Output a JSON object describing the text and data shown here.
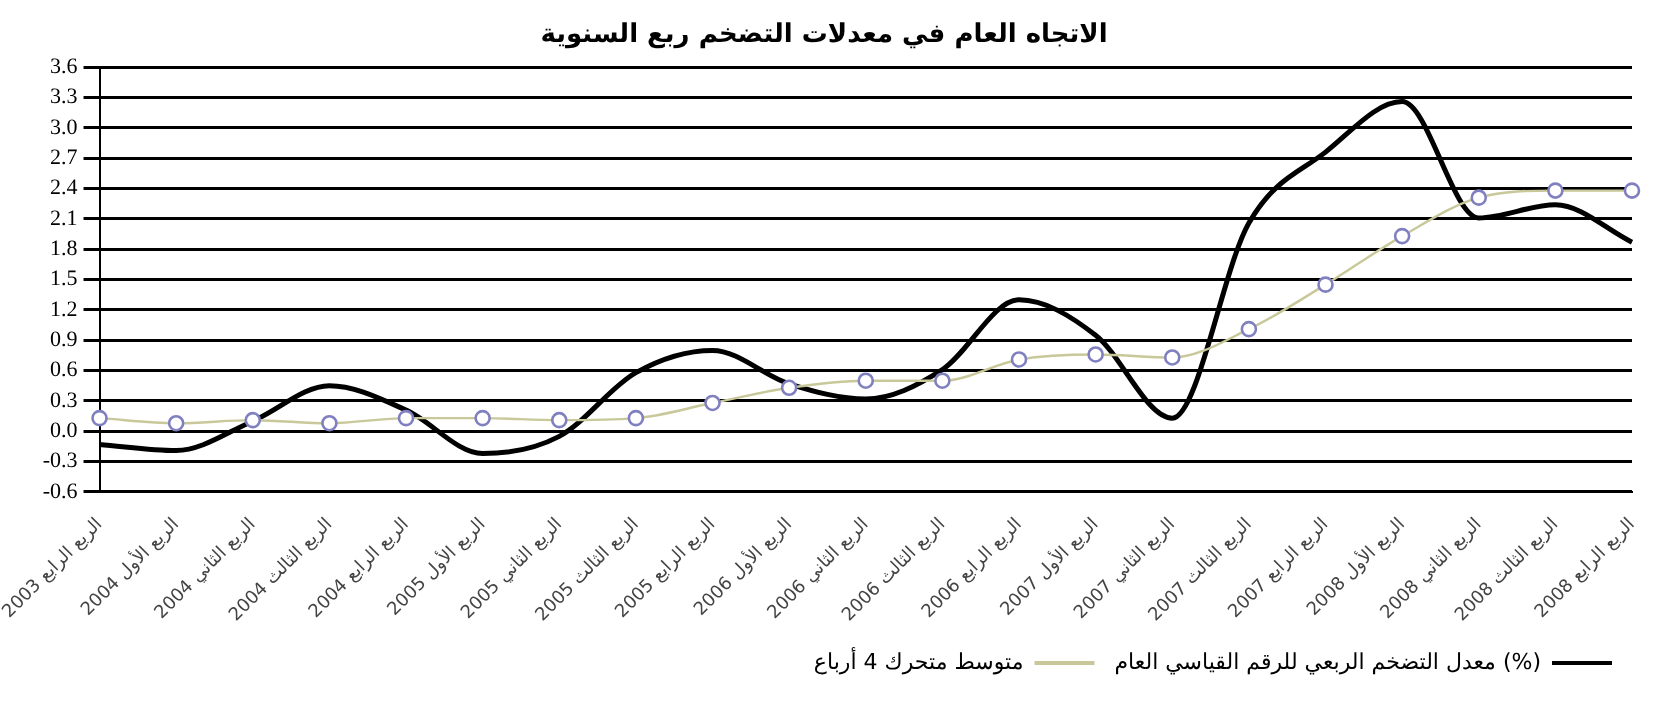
{
  "chart_data": {
    "type": "line",
    "title": "الاتجاه العام في معدلات التضخم ربع السنوية",
    "categories": [
      "الربع الرابع 2003",
      "الربع الأول 2004",
      "الربع الثاني 2004",
      "الربع الثالث 2004",
      "الربع الرابع 2004",
      "الربع الأول 2005",
      "الربع الثاني 2005",
      "الربع الثالث 2005",
      "الربع الرابع 2005",
      "الربع الأول 2006",
      "الربع الثاني 2006",
      "الربع الثالث 2006",
      "الربع الرابع 2006",
      "الربع الأول 2007",
      "الربع الثاني 2007",
      "الربع الثالث 2007",
      "الربع الرابع 2007",
      "الربع الأول 2008",
      "الربع الثاني 2008",
      "الربع الثالث 2008",
      "الربع الرابع 2008"
    ],
    "series": [
      {
        "name": "معدل التضخم الربعي للرقم القياسي العام (%)",
        "color": "#000000",
        "marker": "none",
        "values": [
          -0.13,
          -0.19,
          0.1,
          0.45,
          0.21,
          -0.22,
          -0.05,
          0.58,
          0.8,
          0.47,
          0.32,
          0.61,
          1.3,
          0.95,
          0.13,
          2.06,
          2.76,
          3.26,
          2.11,
          2.24,
          1.87
        ]
      },
      {
        "name": "متوسط متحرك 4 أرباع",
        "color": "#c8c89a",
        "marker": "circle",
        "values": [
          0.13,
          0.08,
          0.11,
          0.08,
          0.13,
          0.13,
          0.11,
          0.13,
          0.28,
          0.43,
          0.5,
          0.5,
          0.71,
          0.76,
          0.73,
          1.01,
          1.45,
          1.93,
          2.31,
          2.38,
          2.38
        ]
      }
    ],
    "ylim": [
      -0.6,
      3.6
    ],
    "yticks": [
      -0.6,
      -0.3,
      {
        "value": 0,
        "label": "0.0"
      },
      0.3,
      0.6,
      0.9,
      1.2,
      1.5,
      1.8,
      2.1,
      2.4,
      2.7,
      {
        "value": 3,
        "label": "3.0"
      },
      3.3,
      3.6
    ],
    "grid": "y",
    "legend": "bottom right"
  }
}
